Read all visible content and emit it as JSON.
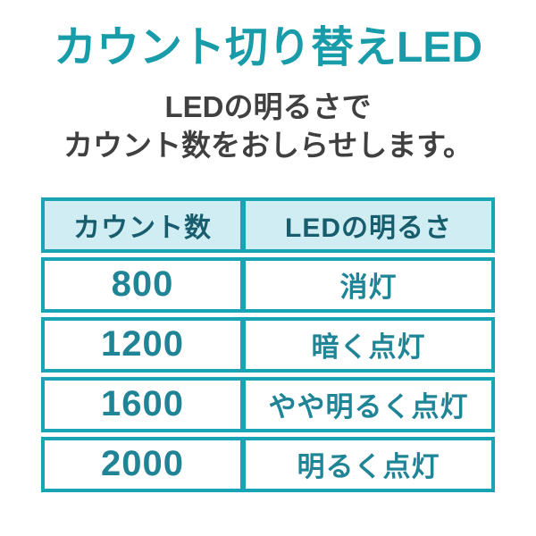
{
  "title": "カウント切り替えLED",
  "subtitle": {
    "line1": "LEDの明るさで",
    "line2": "カウント数をおしらせします。"
  },
  "table": {
    "headers": [
      "カウント数",
      "LEDの明るさ"
    ],
    "rows": [
      {
        "count": "800",
        "brightness": "消灯"
      },
      {
        "count": "1200",
        "brightness": "暗く点灯"
      },
      {
        "count": "1600",
        "brightness": "やや明るく点灯"
      },
      {
        "count": "2000",
        "brightness": "明るく点灯"
      }
    ]
  },
  "colors": {
    "accent_teal": "#189caa",
    "table_border_teal": "#18a4b4",
    "header_background": "#cfedf2",
    "header_text": "#175d6d",
    "cell_text_teal": "#1f8496",
    "subtitle_text": "#404040"
  }
}
